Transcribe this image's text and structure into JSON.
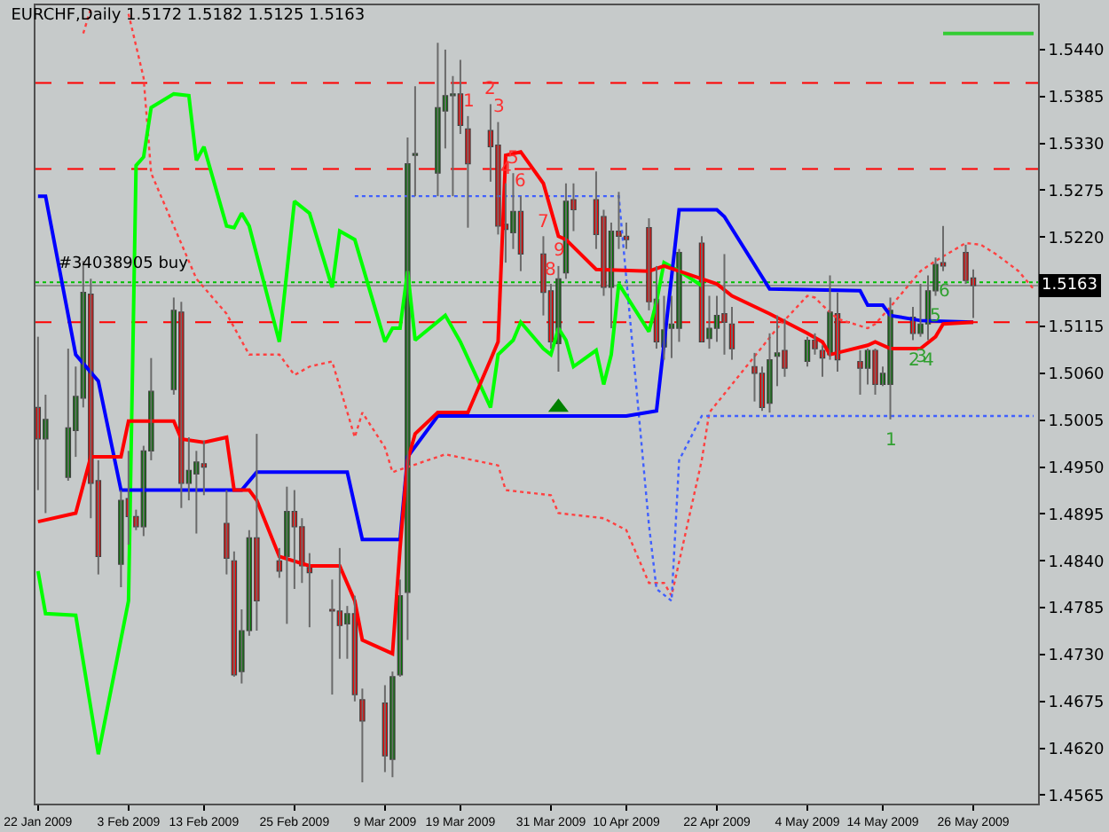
{
  "chart_data": {
    "type": "candlestick",
    "title": "EURCHF,Daily 1.5172 1.5182 1.5125 1.5163",
    "x": [
      "2009-01-22",
      "2009-01-23",
      "2009-01-26",
      "2009-01-27",
      "2009-01-28",
      "2009-01-29",
      "2009-01-30",
      "2009-02-02",
      "2009-02-03",
      "2009-02-04",
      "2009-02-05",
      "2009-02-06",
      "2009-02-09",
      "2009-02-10",
      "2009-02-11",
      "2009-02-12",
      "2009-02-13",
      "2009-02-16",
      "2009-02-17",
      "2009-02-18",
      "2009-02-19",
      "2009-02-20",
      "2009-02-23",
      "2009-02-24",
      "2009-02-25",
      "2009-02-26",
      "2009-02-27",
      "2009-03-02",
      "2009-03-03",
      "2009-03-04",
      "2009-03-05",
      "2009-03-06",
      "2009-03-09",
      "2009-03-10",
      "2009-03-11",
      "2009-03-12",
      "2009-03-13",
      "2009-03-16",
      "2009-03-17",
      "2009-03-18",
      "2009-03-19",
      "2009-03-20",
      "2009-03-23",
      "2009-03-24",
      "2009-03-25",
      "2009-03-26",
      "2009-03-27",
      "2009-03-30",
      "2009-03-31",
      "2009-04-01",
      "2009-04-02",
      "2009-04-03",
      "2009-04-06",
      "2009-04-07",
      "2009-04-08",
      "2009-04-09",
      "2009-04-10",
      "2009-04-13",
      "2009-04-14",
      "2009-04-15",
      "2009-04-16",
      "2009-04-17",
      "2009-04-20",
      "2009-04-21",
      "2009-04-22",
      "2009-04-23",
      "2009-04-24",
      "2009-04-27",
      "2009-04-28",
      "2009-04-29",
      "2009-04-30",
      "2009-05-01",
      "2009-05-04",
      "2009-05-05",
      "2009-05-06",
      "2009-05-07",
      "2009-05-08",
      "2009-05-11",
      "2009-05-12",
      "2009-05-13",
      "2009-05-14",
      "2009-05-15",
      "2009-05-18",
      "2009-05-19",
      "2009-05-20",
      "2009-05-21",
      "2009-05-22",
      "2009-05-25",
      "2009-05-26"
    ],
    "ohlc": [
      [
        1.502,
        1.5103,
        1.4923,
        1.4983
      ],
      [
        1.4983,
        1.5035,
        1.4896,
        1.5006
      ],
      [
        1.4938,
        1.5089,
        1.4934,
        1.4996
      ],
      [
        1.4993,
        1.5068,
        1.4962,
        1.5033
      ],
      [
        1.5031,
        1.5192,
        1.502,
        1.5155
      ],
      [
        1.5153,
        1.5171,
        1.489,
        1.4931
      ],
      [
        1.4934,
        1.4958,
        1.4824,
        1.4845
      ],
      [
        1.4836,
        1.4923,
        1.4809,
        1.4911
      ],
      [
        1.4913,
        1.4969,
        1.4859,
        1.4892
      ],
      [
        1.4892,
        1.49,
        1.4876,
        1.488
      ],
      [
        1.488,
        1.4975,
        1.4869,
        1.4969
      ],
      [
        1.4969,
        1.5078,
        1.4958,
        1.5039
      ],
      [
        1.5041,
        1.5149,
        1.5035,
        1.5134
      ],
      [
        1.5132,
        1.5144,
        1.4902,
        1.4931
      ],
      [
        1.4931,
        1.4985,
        1.4911,
        1.4946
      ],
      [
        1.4942,
        1.4969,
        1.4872,
        1.4956
      ],
      [
        1.4954,
        1.4981,
        1.4917,
        1.495
      ],
      [
        1.4884,
        1.4923,
        1.4824,
        1.4843
      ],
      [
        1.484,
        1.4851,
        1.4704,
        1.4706
      ],
      [
        1.471,
        1.4783,
        1.4696,
        1.4758
      ],
      [
        1.4758,
        1.4876,
        1.4752,
        1.4867
      ],
      [
        1.4867,
        1.4989,
        1.4758,
        1.4793
      ],
      [
        1.484,
        1.4855,
        1.482,
        1.4828
      ],
      [
        1.4845,
        1.4927,
        1.4766,
        1.4898
      ],
      [
        1.4898,
        1.4923,
        1.4807,
        1.488
      ],
      [
        1.488,
        1.489,
        1.4814,
        1.4834
      ],
      [
        1.4832,
        1.4849,
        1.4762,
        1.4826
      ],
      [
        1.4783,
        1.4818,
        1.4683,
        1.4781
      ],
      [
        1.4781,
        1.4855,
        1.4725,
        1.4764
      ],
      [
        1.4766,
        1.4787,
        1.4725,
        1.4778
      ],
      [
        1.4778,
        1.4799,
        1.4675,
        1.4683
      ],
      [
        1.4677,
        1.469,
        1.458,
        1.4652
      ],
      [
        1.4673,
        1.4694,
        1.4592,
        1.4611
      ],
      [
        1.4607,
        1.471,
        1.4586,
        1.4704
      ],
      [
        1.4706,
        1.4818,
        1.4704,
        1.4799
      ],
      [
        1.4803,
        1.5337,
        1.4747,
        1.5306
      ],
      [
        1.5316,
        1.5397,
        1.5268,
        1.5318
      ],
      [
        1.5295,
        1.5448,
        1.5268,
        1.5372
      ],
      [
        1.5368,
        1.544,
        1.5324,
        1.5386
      ],
      [
        1.5386,
        1.5409,
        1.5268,
        1.5388
      ],
      [
        1.5388,
        1.5428,
        1.5341,
        1.5351
      ],
      [
        1.5347,
        1.5362,
        1.5231,
        1.5306
      ],
      [
        1.5345,
        1.5376,
        1.5285,
        1.5326
      ],
      [
        1.5328,
        1.5355,
        1.5223,
        1.5233
      ],
      [
        1.5235,
        1.5283,
        1.519,
        1.5229
      ],
      [
        1.5225,
        1.5295,
        1.5206,
        1.525
      ],
      [
        1.525,
        1.5268,
        1.518,
        1.52
      ],
      [
        1.52,
        1.5221,
        1.5128,
        1.5155
      ],
      [
        1.5157,
        1.5165,
        1.5089,
        1.5097
      ],
      [
        1.5095,
        1.5186,
        1.5062,
        1.5171
      ],
      [
        1.5178,
        1.5283,
        1.5171,
        1.5262
      ],
      [
        1.5264,
        1.5283,
        1.5227,
        1.5252
      ],
      [
        1.5264,
        1.5297,
        1.5206,
        1.5223
      ],
      [
        1.5244,
        1.5252,
        1.5151,
        1.5161
      ],
      [
        1.5161,
        1.5237,
        1.5113,
        1.5227
      ],
      [
        1.5227,
        1.5273,
        1.5206,
        1.5221
      ],
      [
        1.5221,
        1.5237,
        1.5206,
        1.5217
      ],
      [
        1.5231,
        1.5242,
        1.5134,
        1.5144
      ],
      [
        1.5147,
        1.5186,
        1.5089,
        1.5097
      ],
      [
        1.5091,
        1.5151,
        1.5076,
        1.5111
      ],
      [
        1.5113,
        1.5151,
        1.5078,
        1.5118
      ],
      [
        1.5113,
        1.5206,
        1.5097,
        1.5202
      ],
      [
        1.5213,
        1.5221,
        1.5097,
        1.5097
      ],
      [
        1.5101,
        1.5151,
        1.5089,
        1.5113
      ],
      [
        1.5113,
        1.5151,
        1.5097,
        1.5128
      ],
      [
        1.513,
        1.52,
        1.5082,
        1.512
      ],
      [
        1.5118,
        1.5138,
        1.5076,
        1.5089
      ],
      [
        1.5068,
        1.5084,
        1.5027,
        1.506
      ],
      [
        1.506,
        1.5068,
        1.5016,
        1.502
      ],
      [
        1.5025,
        1.5107,
        1.5014,
        1.5076
      ],
      [
        1.508,
        1.5128,
        1.5045,
        1.5084
      ],
      [
        1.5087,
        1.5124,
        1.5056,
        1.5066
      ],
      [
        1.5074,
        1.5103,
        1.5068,
        1.5099
      ],
      [
        1.5099,
        1.5107,
        1.5082,
        1.5089
      ],
      [
        1.5087,
        1.5093,
        1.5056,
        1.5078
      ],
      [
        1.5082,
        1.5175,
        1.5076,
        1.5132
      ],
      [
        1.513,
        1.5155,
        1.5062,
        1.5076
      ],
      [
        1.5074,
        1.5087,
        1.5035,
        1.5066
      ],
      [
        1.5066,
        1.5089,
        1.5047,
        1.5087
      ],
      [
        1.5087,
        1.5089,
        1.5035,
        1.5047
      ],
      [
        1.5047,
        1.5068,
        1.5045,
        1.506
      ],
      [
        1.5047,
        1.5149,
        1.5006,
        1.5134
      ],
      [
        1.5126,
        1.5138,
        1.5099,
        1.5107
      ],
      [
        1.5107,
        1.5165,
        1.5103,
        1.5118
      ],
      [
        1.5118,
        1.5175,
        1.5099,
        1.5157
      ],
      [
        1.5157,
        1.5196,
        1.5151,
        1.5188
      ],
      [
        1.519,
        1.5233,
        1.518,
        1.5186
      ],
      [
        1.5202,
        1.5211,
        1.5165,
        1.5169
      ],
      [
        1.5172,
        1.5182,
        1.5125,
        1.5163
      ]
    ],
    "series": [
      {
        "type": "line",
        "line_style": "dotted",
        "color": "#ff4040",
        "x": [
          "2009-01-28",
          "2009-01-29",
          "2009-01-30",
          "2009-02-03",
          "2009-02-05",
          "2009-02-06",
          "2009-02-09",
          "2009-02-12",
          "2009-02-16",
          "2009-02-19",
          "2009-02-23",
          "2009-02-25",
          "2009-02-27",
          "2009-03-02",
          "2009-03-05",
          "2009-03-06",
          "2009-03-09",
          "2009-03-10",
          "2009-03-17",
          "2009-03-24",
          "2009-03-25",
          "2009-03-31",
          "2009-04-01",
          "2009-04-07",
          "2009-04-10",
          "2009-04-13",
          "2009-04-15",
          "2009-04-16",
          "2009-04-20",
          "2009-04-21",
          "2009-04-30",
          "2009-05-04",
          "2009-05-05",
          "2009-05-06",
          "2009-05-08",
          "2009-05-12",
          "2009-05-13",
          "2009-05-15",
          "2009-05-19",
          "2009-05-21",
          "2009-05-25",
          "2009-05-27",
          "2009-05-29",
          "2009-06-01",
          "2009-06-03"
        ],
        "values": [
          1.5459,
          1.5488,
          null,
          1.5482,
          1.5407,
          1.5295,
          1.5233,
          1.5171,
          1.513,
          1.5082,
          1.5082,
          1.5058,
          1.5068,
          1.5074,
          1.4985,
          1.5014,
          1.4973,
          1.4944,
          1.4965,
          1.4952,
          1.4923,
          1.4917,
          1.4896,
          1.489,
          1.4876,
          1.4814,
          1.4814,
          1.4799,
          1.4958,
          1.5014,
          1.5113,
          1.5151,
          1.5149,
          1.514,
          1.5124,
          1.5113,
          1.5118,
          1.5138,
          1.518,
          1.5192,
          1.5213,
          1.5211,
          1.52,
          1.518,
          1.5159
        ]
      },
      {
        "type": "line",
        "line_style": "dotted",
        "color": "#4060ff",
        "x": [
          "2009-03-05",
          "2009-04-07",
          "2009-04-09",
          "2009-04-13",
          "2009-04-14",
          "2009-04-16",
          "2009-04-17",
          "2009-04-20",
          "2009-06-03"
        ],
        "values": [
          1.5268,
          1.5268,
          1.5268,
          1.4882,
          1.4807,
          1.4793,
          1.4958,
          1.501,
          1.501
        ]
      },
      {
        "type": "line",
        "line_style": "solid",
        "color": "#00ff00",
        "x": [
          "2009-01-22",
          "2009-01-23",
          "2009-01-27",
          "2009-01-30",
          "2009-02-03",
          "2009-02-04",
          "2009-02-05",
          "2009-02-06",
          "2009-02-09",
          "2009-02-11",
          "2009-02-12",
          "2009-02-13",
          "2009-02-16",
          "2009-02-17",
          "2009-02-18",
          "2009-02-19",
          "2009-02-23",
          "2009-02-25",
          "2009-02-27",
          "2009-03-02",
          "2009-03-03",
          "2009-03-05",
          "2009-03-09",
          "2009-03-10",
          "2009-03-11",
          "2009-03-12",
          "2009-03-13",
          "2009-03-17",
          "2009-03-19",
          "2009-03-23",
          "2009-03-24",
          "2009-03-26",
          "2009-03-27",
          "2009-03-30",
          "2009-03-31",
          "2009-04-01",
          "2009-04-02",
          "2009-04-03",
          "2009-04-06",
          "2009-04-07",
          "2009-04-08",
          "2009-04-09",
          "2009-04-13",
          "2009-04-14",
          "2009-04-15",
          "2009-04-17",
          "2009-04-20"
        ],
        "values": [
          1.4828,
          1.4778,
          1.4776,
          1.4613,
          1.4793,
          1.5304,
          1.5314,
          1.5372,
          1.5388,
          1.5386,
          1.531,
          1.5326,
          1.5233,
          1.5231,
          1.5248,
          1.5233,
          1.5097,
          1.5262,
          1.5248,
          1.5161,
          1.5227,
          1.5217,
          1.5097,
          1.5113,
          1.5113,
          1.518,
          1.5099,
          1.5128,
          1.5097,
          1.502,
          1.5082,
          1.5099,
          1.512,
          1.5089,
          1.5082,
          1.5113,
          1.5099,
          1.5068,
          1.5087,
          1.5047,
          1.5082,
          1.5165,
          1.5109,
          1.5144,
          1.519,
          1.518,
          1.5163
        ]
      },
      {
        "type": "line",
        "line_style": "solid",
        "color": "#0000ff",
        "x": [
          "2009-01-22",
          "2009-01-23",
          "2009-01-27",
          "2009-01-30",
          "2009-02-02",
          "2009-02-18",
          "2009-02-20",
          "2009-03-04",
          "2009-03-06",
          "2009-03-11",
          "2009-03-12",
          "2009-03-16",
          "2009-04-10",
          "2009-04-14",
          "2009-04-17",
          "2009-04-22",
          "2009-04-23",
          "2009-04-29",
          "2009-05-11",
          "2009-05-12",
          "2009-05-14",
          "2009-05-15",
          "2009-05-19",
          "2009-05-26"
        ],
        "values": [
          1.5268,
          1.5268,
          1.5082,
          1.5051,
          1.4923,
          1.4923,
          1.4944,
          1.4944,
          1.4865,
          1.4865,
          1.4962,
          1.501,
          1.501,
          1.5016,
          1.5252,
          1.5252,
          1.5244,
          1.5159,
          1.5157,
          1.514,
          1.514,
          1.5128,
          1.5122,
          1.512
        ]
      },
      {
        "type": "line",
        "line_style": "solid",
        "color": "#ff0000",
        "x": [
          "2009-01-22",
          "2009-01-27",
          "2009-01-29",
          "2009-02-02",
          "2009-02-03",
          "2009-02-09",
          "2009-02-10",
          "2009-02-13",
          "2009-02-16",
          "2009-02-17",
          "2009-02-19",
          "2009-02-20",
          "2009-02-23",
          "2009-02-27",
          "2009-03-03",
          "2009-03-05",
          "2009-03-06",
          "2009-03-10",
          "2009-03-11",
          "2009-03-12",
          "2009-03-13",
          "2009-03-16",
          "2009-03-20",
          "2009-03-23",
          "2009-03-24",
          "2009-03-25",
          "2009-03-27",
          "2009-03-30",
          "2009-04-01",
          "2009-04-02",
          "2009-04-06",
          "2009-04-13",
          "2009-04-15",
          "2009-04-20",
          "2009-04-22",
          "2009-04-24",
          "2009-04-29",
          "2009-05-04",
          "2009-05-06",
          "2009-05-07",
          "2009-05-12",
          "2009-05-13",
          "2009-05-15",
          "2009-05-19",
          "2009-05-21",
          "2009-05-22",
          "2009-05-26"
        ],
        "values": [
          1.4886,
          1.4896,
          1.4962,
          1.4962,
          1.5004,
          1.5004,
          1.4983,
          1.4979,
          1.4985,
          1.4923,
          1.4923,
          1.4911,
          1.4845,
          1.4834,
          1.4834,
          1.4793,
          1.4747,
          1.4731,
          1.4855,
          1.4958,
          1.4989,
          1.5014,
          1.5014,
          1.5076,
          1.5097,
          1.5316,
          1.532,
          1.5283,
          1.5221,
          1.5217,
          1.5182,
          1.518,
          1.5186,
          1.5171,
          1.5165,
          1.5151,
          1.513,
          1.5107,
          1.5097,
          1.5082,
          1.5093,
          1.5097,
          1.5089,
          1.5089,
          1.5103,
          1.5118,
          1.512
        ]
      },
      {
        "type": "line",
        "line_style": "solid",
        "color": "#33cc33",
        "x": [
          "2009-05-22",
          "2009-06-03"
        ],
        "values": [
          1.5459,
          1.5459
        ]
      },
      {
        "type": "scatter",
        "marker": "triangle",
        "color": "#008000",
        "x": [
          "2009-04-01"
        ],
        "values": [
          1.502
        ]
      }
    ],
    "annotations": [
      {
        "text": "1",
        "x": "2009-03-20",
        "y": 1.5362
      },
      {
        "text": "2",
        "x": "2009-03-23",
        "y": 1.5376
      },
      {
        "text": "3",
        "x": "2009-03-24",
        "y": 1.5355
      },
      {
        "text": "4",
        "x": "2009-03-25",
        "y": 1.5283
      },
      {
        "text": "5",
        "x": "2009-03-26",
        "y": 1.5295
      },
      {
        "text": "6",
        "x": "2009-03-27",
        "y": 1.5268
      },
      {
        "text": "7",
        "x": "2009-03-30",
        "y": 1.5221
      },
      {
        "text": "8",
        "x": "2009-03-31",
        "y": 1.5165
      },
      {
        "text": "9",
        "x": "2009-04-01",
        "y": 1.5186
      },
      {
        "text": "1",
        "x": "2009-05-15",
        "y": 1.5006
      },
      {
        "text": "2",
        "x": "2009-05-18",
        "y": 1.5099
      },
      {
        "text": "3",
        "x": "2009-05-19",
        "y": 1.5103
      },
      {
        "text": "4",
        "x": "2009-05-20",
        "y": 1.5099
      },
      {
        "text": "5",
        "x": "2009-05-21",
        "y": 1.5151
      },
      {
        "text": "6",
        "x": "2009-05-22",
        "y": 1.518
      }
    ],
    "ref_lines": [
      {
        "axis": "y",
        "value": 1.5401,
        "color": "#ff0000",
        "line_style": "dashed"
      },
      {
        "axis": "y",
        "value": 1.53,
        "color": "#ff0000",
        "line_style": "dashed"
      },
      {
        "axis": "y",
        "value": 1.512,
        "color": "#ff0000",
        "line_style": "dashed"
      },
      {
        "axis": "y",
        "value": 1.5167,
        "color": "#00c000",
        "line_style": "dotted",
        "label": "#34038905 buy"
      },
      {
        "axis": "y",
        "value": 1.5163,
        "color": "#909090",
        "line_style": "solid",
        "label": "1.5163"
      }
    ],
    "xlim": [
      "2009-01-21T16:00",
      "2009-06-03T14:00"
    ],
    "xticks": [
      {
        "value": "2009-01-22",
        "label": "22 Jan 2009"
      },
      {
        "value": "2009-02-03",
        "label": "3 Feb 2009"
      },
      {
        "value": "2009-02-13",
        "label": "13 Feb 2009"
      },
      {
        "value": "2009-02-25",
        "label": "25 Feb 2009"
      },
      {
        "value": "2009-03-09",
        "label": "9 Mar 2009"
      },
      {
        "value": "2009-03-19",
        "label": "19 Mar 2009"
      },
      {
        "value": "2009-03-31",
        "label": "31 Mar 2009"
      },
      {
        "value": "2009-04-10",
        "label": "10 Apr 2009"
      },
      {
        "value": "2009-04-22",
        "label": "22 Apr 2009"
      },
      {
        "value": "2009-05-04",
        "label": "4 May 2009"
      },
      {
        "value": "2009-05-14",
        "label": "14 May 2009"
      },
      {
        "value": "2009-05-26",
        "label": "26 May 2009"
      }
    ],
    "ylim": [
      1.4555,
      1.5492
    ],
    "yticks": [
      1.4565,
      {
        "value": 1.462,
        "label": "1.4620"
      },
      1.4675,
      {
        "value": 1.473,
        "label": "1.4730"
      },
      1.4785,
      {
        "value": 1.484,
        "label": "1.4840"
      },
      1.4895,
      {
        "value": 1.495,
        "label": "1.4950"
      },
      1.5005,
      {
        "value": 1.506,
        "label": "1.5060"
      },
      1.5115,
      {
        "value": 1.522,
        "label": "1.5220"
      },
      1.5275,
      {
        "value": 1.533,
        "label": "1.5330"
      },
      1.5385,
      {
        "value": 1.544,
        "label": "1.5440"
      }
    ]
  }
}
